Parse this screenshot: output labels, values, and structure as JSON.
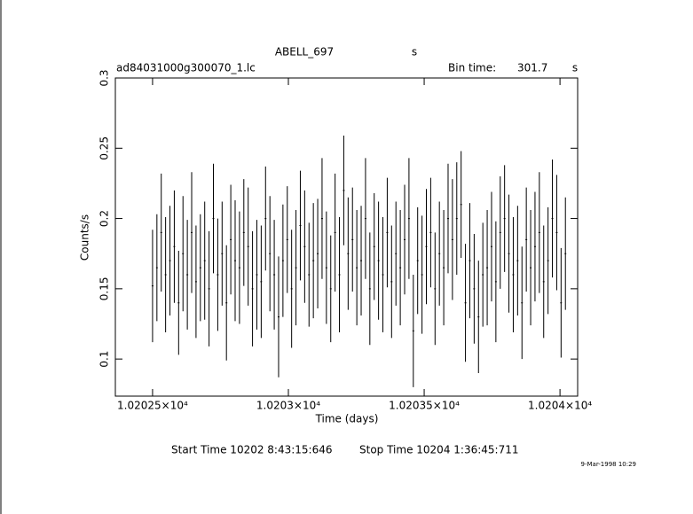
{
  "chart_data": {
    "type": "errorbar",
    "title": "ABELL_697",
    "title_unit": "s",
    "file": "ad84031000g300070_1.lc",
    "bin_time_label": "Bin time:",
    "bin_time": 301.7,
    "bin_time_unit": "s",
    "x_label": "Time (days)",
    "y_label": "Counts/s",
    "start_time": "Start Time 10202  8:43:15:646",
    "stop_time": "Stop Time 10204  1:36:45:711",
    "date": "9-Mar-1998 10:29",
    "xlim": [
      10202.363,
      10204.065
    ],
    "xticks": [
      {
        "value": 10202.5,
        "label": "1.02025×10⁴"
      },
      {
        "value": 10203,
        "label": "1.0203×10⁴"
      },
      {
        "value": 10203.5,
        "label": "1.02035×10⁴"
      },
      {
        "value": 10204,
        "label": "1.0204×10⁴"
      }
    ],
    "ylim": [
      0.0736,
      0.3
    ],
    "yticks": [
      0.1,
      0.15,
      0.2,
      0.25,
      0.3
    ],
    "series": [
      {
        "color": "#000000",
        "x": [
          10202.5,
          10202.516,
          10202.532,
          10202.548,
          10202.564,
          10202.58,
          10202.596,
          10202.612,
          10202.628,
          10202.644,
          10202.66,
          10202.676,
          10202.692,
          10202.708,
          10202.724,
          10202.74,
          10202.756,
          10202.772,
          10202.788,
          10202.804,
          10202.82,
          10202.836,
          10202.852,
          10202.868,
          10202.884,
          10202.9,
          10202.916,
          10202.932,
          10202.948,
          10202.964,
          10202.98,
          10202.996,
          10203.012,
          10203.028,
          10203.044,
          10203.06,
          10203.076,
          10203.092,
          10203.108,
          10203.124,
          10203.14,
          10203.156,
          10203.172,
          10203.188,
          10203.204,
          10203.22,
          10203.236,
          10203.252,
          10203.268,
          10203.284,
          10203.3,
          10203.316,
          10203.332,
          10203.348,
          10203.364,
          10203.38,
          10203.396,
          10203.412,
          10203.428,
          10203.444,
          10203.46,
          10203.476,
          10203.492,
          10203.508,
          10203.524,
          10203.54,
          10203.556,
          10203.572,
          10203.588,
          10203.604,
          10203.62,
          10203.636,
          10203.652,
          10203.668,
          10203.684,
          10203.7,
          10203.716,
          10203.732,
          10203.748,
          10203.764,
          10203.78,
          10203.796,
          10203.812,
          10203.828,
          10203.844,
          10203.86,
          10203.876,
          10203.892,
          10203.908,
          10203.924,
          10203.94,
          10203.956,
          10203.972,
          10203.988,
          10204.004,
          10204.02
        ],
        "values": [
          0.152,
          0.165,
          0.19,
          0.16,
          0.17,
          0.18,
          0.14,
          0.175,
          0.16,
          0.19,
          0.155,
          0.165,
          0.17,
          0.15,
          0.2,
          0.16,
          0.175,
          0.14,
          0.185,
          0.17,
          0.165,
          0.19,
          0.18,
          0.15,
          0.16,
          0.155,
          0.2,
          0.175,
          0.16,
          0.13,
          0.17,
          0.185,
          0.15,
          0.165,
          0.195,
          0.18,
          0.16,
          0.17,
          0.175,
          0.2,
          0.165,
          0.15,
          0.19,
          0.16,
          0.22,
          0.175,
          0.185,
          0.165,
          0.17,
          0.2,
          0.15,
          0.18,
          0.17,
          0.16,
          0.19,
          0.155,
          0.175,
          0.165,
          0.185,
          0.2,
          0.12,
          0.17,
          0.16,
          0.18,
          0.19,
          0.15,
          0.175,
          0.165,
          0.2,
          0.185,
          0.2,
          0.21,
          0.14,
          0.17,
          0.15,
          0.13,
          0.16,
          0.165,
          0.18,
          0.155,
          0.19,
          0.2,
          0.175,
          0.16,
          0.17,
          0.14,
          0.185,
          0.165,
          0.18,
          0.19,
          0.155,
          0.17,
          0.2,
          0.19,
          0.14,
          0.175
        ],
        "errors": [
          0.04,
          0.038,
          0.042,
          0.041,
          0.039,
          0.04,
          0.037,
          0.041,
          0.039,
          0.043,
          0.04,
          0.038,
          0.042,
          0.041,
          0.039,
          0.04,
          0.037,
          0.041,
          0.039,
          0.043,
          0.04,
          0.038,
          0.042,
          0.041,
          0.039,
          0.04,
          0.037,
          0.041,
          0.039,
          0.043,
          0.04,
          0.038,
          0.042,
          0.041,
          0.039,
          0.04,
          0.037,
          0.041,
          0.039,
          0.043,
          0.04,
          0.038,
          0.042,
          0.041,
          0.039,
          0.04,
          0.037,
          0.041,
          0.039,
          0.043,
          0.04,
          0.038,
          0.042,
          0.041,
          0.039,
          0.04,
          0.037,
          0.041,
          0.039,
          0.043,
          0.04,
          0.038,
          0.042,
          0.041,
          0.039,
          0.04,
          0.037,
          0.041,
          0.039,
          0.043,
          0.04,
          0.038,
          0.042,
          0.041,
          0.039,
          0.04,
          0.037,
          0.041,
          0.039,
          0.043,
          0.04,
          0.038,
          0.042,
          0.041,
          0.039,
          0.04,
          0.037,
          0.041,
          0.039,
          0.043,
          0.04,
          0.038,
          0.042,
          0.041,
          0.039,
          0.04
        ]
      }
    ]
  }
}
